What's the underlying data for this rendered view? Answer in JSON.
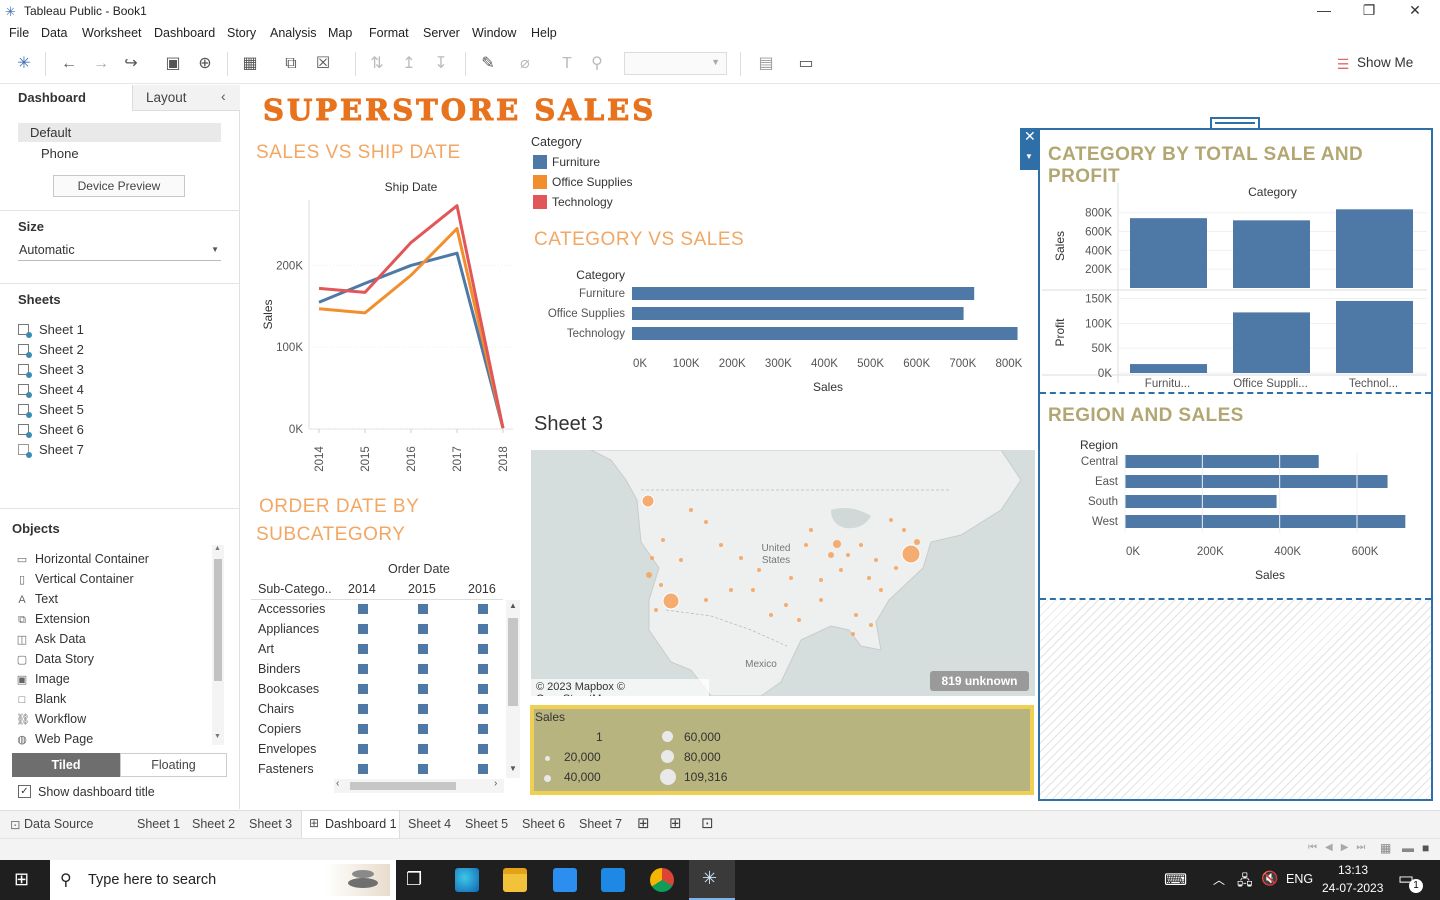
{
  "window": {
    "title": "Tableau Public - Book1"
  },
  "menu": [
    "File",
    "Data",
    "Worksheet",
    "Dashboard",
    "Story",
    "Analysis",
    "Map",
    "Format",
    "Server",
    "Window",
    "Help"
  ],
  "toolbar": {
    "show_me": "Show Me"
  },
  "left": {
    "tab_dashboard": "Dashboard",
    "tab_layout": "Layout",
    "device_default": "Default",
    "device_phone": "Phone",
    "device_preview": "Device Preview",
    "size_title": "Size",
    "size_value": "Automatic",
    "sheets_title": "Sheets",
    "sheets": [
      "Sheet 1",
      "Sheet 2",
      "Sheet 3",
      "Sheet 4",
      "Sheet 5",
      "Sheet 6",
      "Sheet 7"
    ],
    "objects_title": "Objects",
    "objects": [
      {
        "label": "Horizontal Container",
        "icon": "horizontal-container-icon"
      },
      {
        "label": "Vertical Container",
        "icon": "vertical-container-icon"
      },
      {
        "label": "Text",
        "icon": "text-icon"
      },
      {
        "label": "Extension",
        "icon": "extension-icon"
      },
      {
        "label": "Ask Data",
        "icon": "ask-data-icon"
      },
      {
        "label": "Data Story",
        "icon": "data-story-icon"
      },
      {
        "label": "Image",
        "icon": "image-icon"
      },
      {
        "label": "Blank",
        "icon": "blank-icon"
      },
      {
        "label": "Workflow",
        "icon": "workflow-icon"
      },
      {
        "label": "Web Page",
        "icon": "web-page-icon"
      }
    ],
    "tiled": "Tiled",
    "floating": "Floating",
    "show_title": "Show dashboard title"
  },
  "dashboard": {
    "title": "SUPERSTORE SALES",
    "sales_ship_title": "SALES VS SHIP DATE",
    "category_sales_title": "CATEGORY VS SALES",
    "sheet3_title": "Sheet 3",
    "order_date_title_1": "ORDER DATE BY",
    "order_date_title_2": "SUBCATEGORY",
    "cat_profit_title": "CATEGORY BY TOTAL SALE AND PROFIT",
    "region_title": "REGION AND SALES",
    "legend_title": "Category",
    "map_credit": "© 2023 Mapbox © OpenStreetMap",
    "map_unknown": "819 unknown",
    "map_label_us_1": "United",
    "map_label_us_2": "States",
    "map_label_mx": "Mexico",
    "size_legend_title": "Sales",
    "size_legend": [
      "1",
      "20,000",
      "40,000",
      "60,000",
      "80,000",
      "109,316"
    ]
  },
  "colors": {
    "furniture": "#4e79a7",
    "office_supplies": "#f28e2b",
    "technology": "#e15759",
    "bar": "#4e79a7",
    "orange_title": "#f2a764",
    "olive_title": "#b2a772",
    "legend_bg": "#b8b47f",
    "legend_border": "#f0cf55"
  },
  "chart_data": [
    {
      "type": "line",
      "title": "Ship Date",
      "xlabel": "Ship Date",
      "ylabel": "Sales",
      "x": [
        "2014",
        "2015",
        "2016",
        "2017",
        "2018"
      ],
      "ylim": [
        0,
        280000
      ],
      "yticks": [
        "0K",
        "100K",
        "200K"
      ],
      "series": [
        {
          "name": "Furniture",
          "values": [
            155000,
            178000,
            200000,
            215000,
            1000
          ]
        },
        {
          "name": "Office Supplies",
          "values": [
            147000,
            142000,
            188000,
            245000,
            1000
          ]
        },
        {
          "name": "Technology",
          "values": [
            172000,
            167000,
            228000,
            273000,
            1000
          ]
        }
      ]
    },
    {
      "type": "bar",
      "orientation": "horizontal",
      "title": "CATEGORY VS SALES",
      "xlabel": "Sales",
      "ylabel": "Category",
      "categories": [
        "Furniture",
        "Office Supplies",
        "Technology"
      ],
      "values": [
        742000,
        719000,
        836000
      ],
      "xlim": [
        0,
        850000
      ],
      "xticks": [
        "0K",
        "100K",
        "200K",
        "300K",
        "400K",
        "500K",
        "600K",
        "700K",
        "800K"
      ]
    },
    {
      "type": "bar",
      "title": "CATEGORY BY TOTAL SALE AND PROFIT",
      "xlabel": "Category",
      "categories": [
        "Furniture",
        "Office Supplies",
        "Technology"
      ],
      "category_labels_visible": [
        "Furnitu...",
        "Office Suppli...",
        "Technol..."
      ],
      "series": [
        {
          "name": "Sales",
          "values": [
            742000,
            719000,
            836000
          ],
          "ylim": [
            0,
            850000
          ],
          "yticks": [
            "200K",
            "400K",
            "600K",
            "800K"
          ]
        },
        {
          "name": "Profit",
          "values": [
            18000,
            122000,
            145000
          ],
          "ylim": [
            0,
            155000
          ],
          "yticks": [
            "0K",
            "50K",
            "100K",
            "150K"
          ]
        }
      ]
    },
    {
      "type": "bar",
      "orientation": "horizontal",
      "title": "REGION AND SALES",
      "xlabel": "Sales",
      "ylabel": "Region",
      "categories": [
        "Central",
        "East",
        "South",
        "West"
      ],
      "values": [
        501000,
        679000,
        392000,
        725000
      ],
      "xlim": [
        0,
        750000
      ],
      "xticks": [
        "0K",
        "200K",
        "400K",
        "600K"
      ]
    },
    {
      "type": "table",
      "title": "ORDER DATE BY SUBCATEGORY",
      "column_header": "Order Date",
      "row_header": "Sub-Catego..",
      "columns": [
        "2014",
        "2015",
        "2016"
      ],
      "rows": [
        "Accessories",
        "Appliances",
        "Art",
        "Binders",
        "Bookcases",
        "Chairs",
        "Copiers",
        "Envelopes",
        "Fasteners"
      ]
    }
  ],
  "bottom_tabs": {
    "data_source": "Data Source",
    "tabs": [
      "Sheet 1",
      "Sheet 2",
      "Sheet 3",
      "Dashboard 1",
      "Sheet 4",
      "Sheet 5",
      "Sheet 6",
      "Sheet 7"
    ]
  },
  "taskbar": {
    "search": "Type here to search",
    "lang": "ENG",
    "time": "13:13",
    "date": "24-07-2023",
    "notif": "1"
  }
}
